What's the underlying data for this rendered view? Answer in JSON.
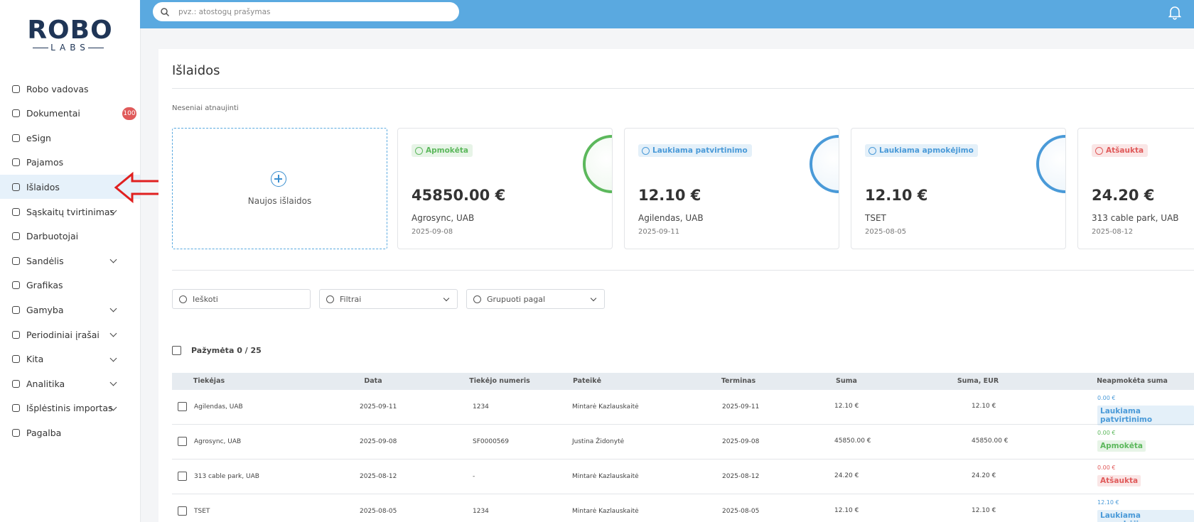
{
  "logo": {
    "top": "ROBO",
    "bottom": "LABS"
  },
  "search_placeholder": "pvz.: atostogų prašymas",
  "sidebar": [
    {
      "label": "Robo vadovas"
    },
    {
      "label": "Dokumentai",
      "badge": "100"
    },
    {
      "label": "eSign"
    },
    {
      "label": "Pajamos"
    },
    {
      "label": "Išlaidos",
      "active": true
    },
    {
      "label": "Sąskaitų tvirtinimas",
      "expandable": true
    },
    {
      "label": "Darbuotojai"
    },
    {
      "label": "Sandėlis",
      "expandable": true
    },
    {
      "label": "Grafikas"
    },
    {
      "label": "Gamyba",
      "expandable": true
    },
    {
      "label": "Periodiniai įrašai",
      "expandable": true
    },
    {
      "label": "Kita",
      "expandable": true
    },
    {
      "label": "Analitika",
      "expandable": true
    },
    {
      "label": "Išplėstinis importas",
      "expandable": true
    },
    {
      "label": "Pagalba"
    }
  ],
  "page": {
    "title": "Išlaidos",
    "recent_label": "Neseniai atnaujinti",
    "new_card_label": "Naujos išlaidos",
    "cards": [
      {
        "status": "Apmokėta",
        "color": "#5cb85c",
        "amount": "45850.00 €",
        "company": "Agrosync, UAB",
        "date": "2025-09-08"
      },
      {
        "status": "Laukiama patvirtinimo",
        "color": "#4a9ad8",
        "amount": "12.10 €",
        "company": "Agilendas, UAB",
        "date": "2025-09-11"
      },
      {
        "status": "Laukiama apmokėjimo",
        "color": "#4a9ad8",
        "amount": "12.10 €",
        "company": "TSET",
        "date": "2025-08-05"
      },
      {
        "status": "Atšaukta",
        "color": "#e05a5a",
        "amount": "24.20 €",
        "company": "313 cable park, UAB",
        "date": "2025-08-12"
      }
    ],
    "filters": {
      "search": "Ieškoti",
      "filter": "Filtrai",
      "group": "Grupuoti pagal"
    },
    "selected": "Pažymėta 0 / 25",
    "table": {
      "columns": [
        "Tiekėjas",
        "Data",
        "Tiekėjo numeris",
        "Pateikė",
        "Terminas",
        "Suma",
        "Suma, EUR",
        "Neapmokėta suma"
      ],
      "rows": [
        {
          "cells": [
            "Agilendas, UAB",
            "2025-09-11",
            "1234",
            "Mintarė Kazlauskaitė",
            "2025-09-11",
            "12.10 €",
            "12.10 €"
          ],
          "unpaid": "0.00 €",
          "status": "Laukiama patvirtinimo",
          "color": "#4a9ad8"
        },
        {
          "cells": [
            "Agrosync, UAB",
            "2025-09-08",
            "SF0000569",
            "Justina Židonytė",
            "2025-09-08",
            "45850.00 €",
            "45850.00 €"
          ],
          "unpaid": "0.00 €",
          "status": "Apmokėta",
          "color": "#5cb85c"
        },
        {
          "cells": [
            "313 cable park, UAB",
            "2025-08-12",
            "-",
            "Mintarė Kazlauskaitė",
            "2025-08-12",
            "24.20 €",
            "24.20 €"
          ],
          "unpaid": "0.00 €",
          "status": "Atšaukta",
          "color": "#e05a5a"
        },
        {
          "cells": [
            "TSET",
            "2025-08-05",
            "1234",
            "Mintarė Kazlauskaitė",
            "2025-08-05",
            "12.10 €",
            "12.10 €"
          ],
          "unpaid": "12.10 €",
          "status": "Laukiama apmokėjimo",
          "color": "#4a9ad8"
        }
      ]
    }
  }
}
